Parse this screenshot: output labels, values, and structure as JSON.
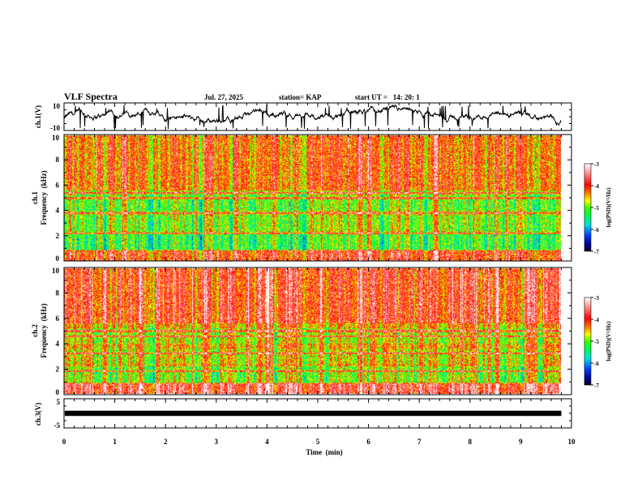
{
  "header": {
    "title": "VLF Spectra",
    "date": "Jul. 27, 2025",
    "station": "station= KAP",
    "start": "start UT =   14: 20: 1"
  },
  "chart_data": [
    {
      "type": "line",
      "name": "ch1-waveform",
      "ylabel": "ch.1(V)",
      "ylim": [
        -10,
        10
      ],
      "yticks": [
        "10",
        "-10"
      ],
      "xlim": [
        0,
        10
      ],
      "data_end_min": 9.8
    },
    {
      "type": "heatmap",
      "name": "ch1-spectrogram",
      "ylabel_1": "ch.1",
      "ylabel_2": "Frequency  (kHz)",
      "ylim": [
        0,
        10
      ],
      "yticks": [
        "0",
        "2",
        "4",
        "6",
        "8",
        "10"
      ],
      "xlim": [
        0,
        10
      ],
      "data_end_min": 9.8,
      "emission_lines_khz": [
        2.2,
        3.8,
        5.0,
        5.4
      ],
      "colorbar": {
        "label": "log(PSD)(V²/Hz)",
        "range": [
          -7,
          -3
        ],
        "ticks": [
          "-3",
          "-4",
          "-5",
          "-6",
          "-7"
        ]
      }
    },
    {
      "type": "heatmap",
      "name": "ch2-spectrogram",
      "ylabel_1": "ch.2",
      "ylabel_2": "Frequency  (kHz)",
      "ylim": [
        0,
        10
      ],
      "yticks": [
        "0",
        "2",
        "4",
        "6",
        "8",
        "10"
      ],
      "xlim": [
        0,
        10
      ],
      "data_end_min": 9.8,
      "emission_lines_khz": [
        1.8,
        3.2,
        4.6,
        5.0
      ],
      "colorbar": {
        "label": "log(PSD)(V²/Hz)",
        "range": [
          -7,
          -3
        ],
        "ticks": [
          "-3",
          "-4",
          "-5",
          "-6",
          "-7"
        ]
      }
    },
    {
      "type": "line",
      "name": "ch3-waveform",
      "ylabel": "ch.3(V)",
      "ylim": [
        -5,
        5
      ],
      "yticks": [
        "5",
        "-5"
      ],
      "xlim": [
        0,
        10
      ],
      "data_end_min": 9.8,
      "level_v": 0
    }
  ],
  "xaxis": {
    "label": "Time  (min)",
    "ticks": [
      "0",
      "1",
      "2",
      "3",
      "4",
      "5",
      "6",
      "7",
      "8",
      "9",
      "10"
    ]
  }
}
